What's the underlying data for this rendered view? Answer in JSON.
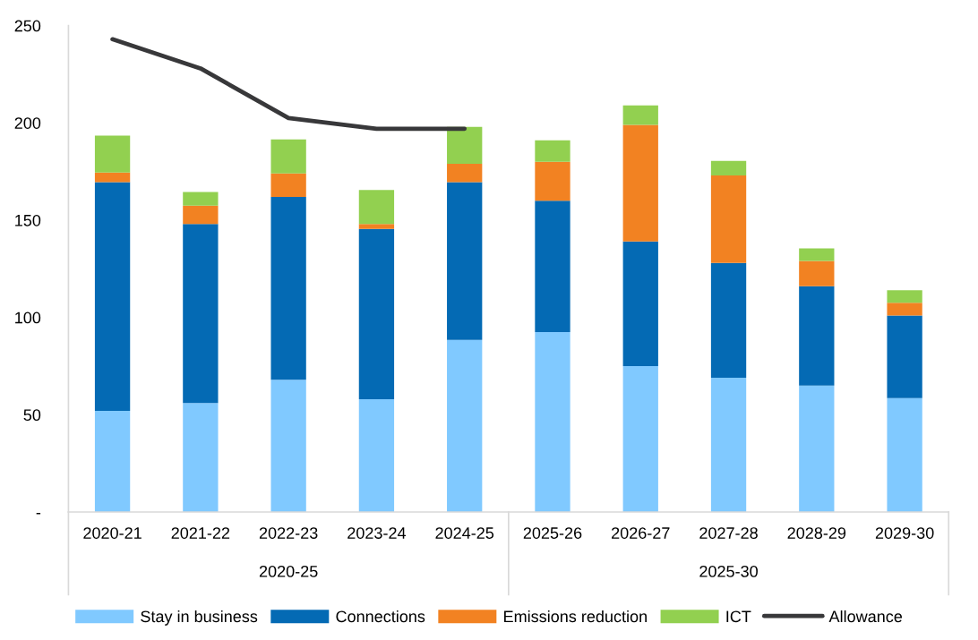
{
  "chart_data": {
    "type": "bar",
    "stacked": true,
    "categories": [
      "2020-21",
      "2021-22",
      "2022-23",
      "2023-24",
      "2024-25",
      "2025-26",
      "2026-27",
      "2027-28",
      "2028-29",
      "2029-30"
    ],
    "series": [
      {
        "name": "Stay in business",
        "color": "#80c9ff",
        "values": [
          52,
          56,
          68,
          58,
          88.5,
          92.5,
          75,
          69,
          65,
          58.5
        ]
      },
      {
        "name": "Connections",
        "color": "#046ab4",
        "values": [
          117.5,
          92,
          94,
          87.5,
          81,
          67.5,
          64,
          59,
          51,
          42.5
        ]
      },
      {
        "name": "Emissions reduction",
        "color": "#f28222",
        "values": [
          5,
          9.5,
          12,
          2.5,
          9.5,
          20,
          60,
          45,
          13,
          6.5
        ]
      },
      {
        "name": "ICT",
        "color": "#92d050",
        "values": [
          19,
          7,
          17.5,
          17.5,
          19,
          11,
          10,
          7.5,
          6.5,
          6.5
        ]
      },
      {
        "name": "Allowance",
        "type": "line",
        "color": "#38383a",
        "values": [
          243,
          228,
          202.5,
          197,
          197,
          null,
          null,
          null,
          null,
          null
        ]
      }
    ],
    "ylim": [
      0,
      250
    ],
    "yticks": [
      {
        "value": 0,
        "label": "-"
      },
      50,
      100,
      150,
      200,
      250
    ],
    "annotations": [
      "2020-25",
      "2025-30"
    ],
    "legend": "bottom"
  }
}
